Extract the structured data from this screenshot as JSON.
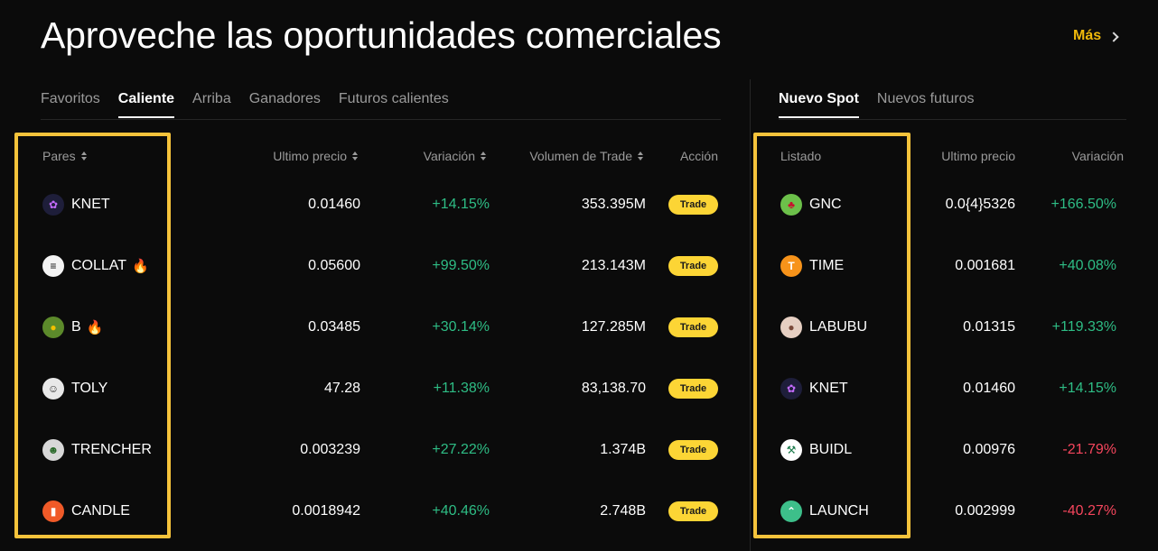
{
  "header": {
    "title": "Aproveche las oportunidades comerciales",
    "more_label": "Más"
  },
  "left_tabs": [
    "Favoritos",
    "Caliente",
    "Arriba",
    "Ganadores",
    "Futuros calientes"
  ],
  "right_tabs": [
    "Nuevo Spot",
    "Nuevos futuros"
  ],
  "left_table": {
    "headers": {
      "pair": "Pares",
      "price": "Ultimo precio",
      "change": "Variación",
      "volume": "Volumen de Trade",
      "action": "Acción"
    },
    "rows": [
      {
        "pair": "KNET",
        "icon": "knet-icon",
        "hot": false,
        "price": "0.01460",
        "change": "+14.15%",
        "volume": "353.395M",
        "trade": "Trade"
      },
      {
        "pair": "COLLAT",
        "icon": "collat-icon",
        "hot": true,
        "price": "0.05600",
        "change": "+99.50%",
        "volume": "213.143M",
        "trade": "Trade"
      },
      {
        "pair": "B",
        "icon": "b-icon",
        "hot": true,
        "price": "0.03485",
        "change": "+30.14%",
        "volume": "127.285M",
        "trade": "Trade"
      },
      {
        "pair": "TOLY",
        "icon": "toly-icon",
        "hot": false,
        "price": "47.28",
        "change": "+11.38%",
        "volume": "83,138.70",
        "trade": "Trade"
      },
      {
        "pair": "TRENCHER",
        "icon": "trencher-icon",
        "hot": false,
        "price": "0.003239",
        "change": "+27.22%",
        "volume": "1.374B",
        "trade": "Trade"
      },
      {
        "pair": "CANDLE",
        "icon": "candle-icon",
        "hot": false,
        "price": "0.0018942",
        "change": "+40.46%",
        "volume": "2.748B",
        "trade": "Trade"
      }
    ]
  },
  "right_table": {
    "headers": {
      "listing": "Listado",
      "price": "Ultimo precio",
      "change": "Variación"
    },
    "rows": [
      {
        "pair": "GNC",
        "icon": "gnc-icon",
        "price": "0.0{4}5326",
        "change": "+166.50%",
        "positive": true
      },
      {
        "pair": "TIME",
        "icon": "time-icon",
        "price": "0.001681",
        "change": "+40.08%",
        "positive": true
      },
      {
        "pair": "LABUBU",
        "icon": "labubu-icon",
        "price": "0.01315",
        "change": "+119.33%",
        "positive": true
      },
      {
        "pair": "KNET",
        "icon": "knet-icon",
        "price": "0.01460",
        "change": "+14.15%",
        "positive": true
      },
      {
        "pair": "BUIDL",
        "icon": "buidl-icon",
        "price": "0.00976",
        "change": "-21.79%",
        "positive": false
      },
      {
        "pair": "LAUNCH",
        "icon": "launch-icon",
        "price": "0.002999",
        "change": "-40.27%",
        "positive": false
      }
    ]
  },
  "colors": {
    "accent": "#f0b90b",
    "trade_button": "#fcd535",
    "positive": "#2ebd85",
    "negative": "#f6465d",
    "highlight": "#f5c33b"
  }
}
